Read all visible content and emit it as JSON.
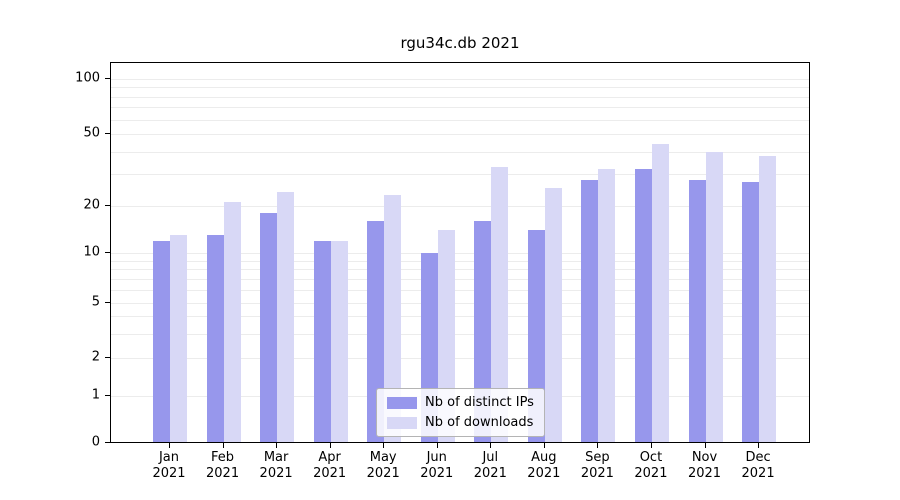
{
  "title": "rgu34c.db 2021",
  "chart_data": {
    "type": "bar",
    "categories": [
      "Jan",
      "Feb",
      "Mar",
      "Apr",
      "May",
      "Jun",
      "Jul",
      "Aug",
      "Sep",
      "Oct",
      "Nov",
      "Dec"
    ],
    "year_label": "2021",
    "series": [
      {
        "name": "Nb of distinct IPs",
        "color": "#9797ec",
        "values": [
          12,
          13,
          18,
          12,
          16,
          10,
          16,
          14,
          28,
          32,
          28,
          27
        ]
      },
      {
        "name": "Nb of downloads",
        "color": "#d8d8f6",
        "values": [
          13,
          21,
          24,
          12,
          23,
          14,
          33,
          25,
          32,
          44,
          40,
          38
        ]
      }
    ],
    "yticks": [
      0,
      1,
      2,
      5,
      10,
      20,
      50,
      100
    ],
    "yscale": "symlog",
    "ylim": [
      0,
      130
    ],
    "grid": true,
    "legend_position": "lower center",
    "gridline_color": "#ececec"
  }
}
